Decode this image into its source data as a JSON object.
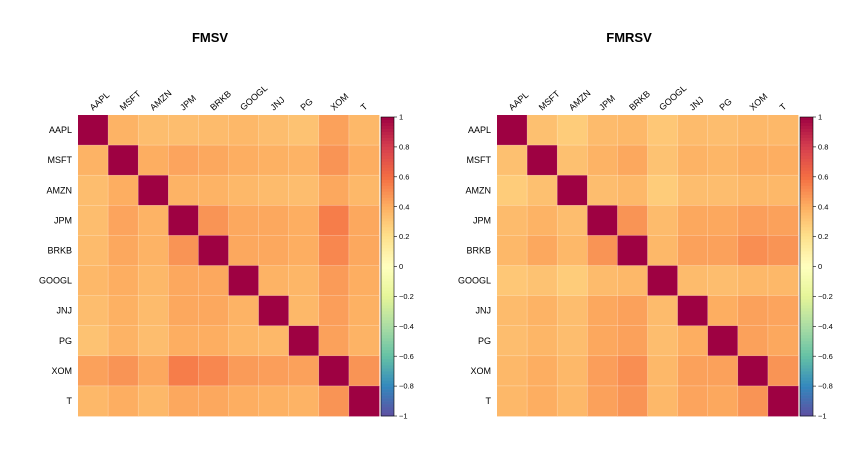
{
  "chart_data": [
    {
      "type": "heatmap",
      "title": "FMSV",
      "categories": [
        "AAPL",
        "MSFT",
        "AMZN",
        "JPM",
        "BRKB",
        "GOOGL",
        "JNJ",
        "PG",
        "XOM",
        "T"
      ],
      "values": [
        [
          1.0,
          0.38,
          0.34,
          0.34,
          0.35,
          0.36,
          0.34,
          0.32,
          0.44,
          0.36
        ],
        [
          0.38,
          1.0,
          0.4,
          0.43,
          0.42,
          0.4,
          0.39,
          0.38,
          0.48,
          0.4
        ],
        [
          0.34,
          0.4,
          1.0,
          0.38,
          0.38,
          0.36,
          0.35,
          0.34,
          0.42,
          0.36
        ],
        [
          0.34,
          0.43,
          0.38,
          1.0,
          0.48,
          0.42,
          0.42,
          0.4,
          0.55,
          0.42
        ],
        [
          0.35,
          0.42,
          0.38,
          0.48,
          1.0,
          0.42,
          0.42,
          0.4,
          0.52,
          0.42
        ],
        [
          0.36,
          0.4,
          0.36,
          0.42,
          0.42,
          1.0,
          0.38,
          0.37,
          0.46,
          0.4
        ],
        [
          0.34,
          0.39,
          0.35,
          0.42,
          0.42,
          0.38,
          1.0,
          0.36,
          0.45,
          0.39
        ],
        [
          0.32,
          0.38,
          0.34,
          0.4,
          0.4,
          0.37,
          0.36,
          1.0,
          0.44,
          0.38
        ],
        [
          0.44,
          0.48,
          0.42,
          0.55,
          0.52,
          0.46,
          0.45,
          0.44,
          1.0,
          0.48
        ],
        [
          0.36,
          0.4,
          0.36,
          0.42,
          0.42,
          0.4,
          0.39,
          0.38,
          0.48,
          1.0
        ]
      ],
      "colorbar": {
        "range": [
          -1,
          1
        ],
        "ticks": [
          "1",
          "0.8",
          "0.6",
          "0.4",
          "0.2",
          "0",
          "−0.2",
          "−0.4",
          "−0.6",
          "−0.8",
          "−1"
        ]
      }
    },
    {
      "type": "heatmap",
      "title": "FMRSV",
      "categories": [
        "AAPL",
        "MSFT",
        "AMZN",
        "JPM",
        "BRKB",
        "GOOGL",
        "JNJ",
        "PG",
        "XOM",
        "T"
      ],
      "values": [
        [
          1.0,
          0.33,
          0.28,
          0.35,
          0.36,
          0.3,
          0.35,
          0.34,
          0.36,
          0.36
        ],
        [
          0.33,
          1.0,
          0.33,
          0.38,
          0.42,
          0.32,
          0.38,
          0.37,
          0.4,
          0.4
        ],
        [
          0.28,
          0.33,
          1.0,
          0.34,
          0.36,
          0.28,
          0.34,
          0.34,
          0.36,
          0.36
        ],
        [
          0.35,
          0.38,
          0.34,
          1.0,
          0.48,
          0.35,
          0.42,
          0.42,
          0.45,
          0.44
        ],
        [
          0.36,
          0.42,
          0.36,
          0.48,
          1.0,
          0.36,
          0.44,
          0.44,
          0.5,
          0.48
        ],
        [
          0.3,
          0.32,
          0.28,
          0.35,
          0.36,
          1.0,
          0.35,
          0.34,
          0.36,
          0.36
        ],
        [
          0.35,
          0.38,
          0.34,
          0.42,
          0.44,
          0.35,
          1.0,
          0.4,
          0.44,
          0.43
        ],
        [
          0.34,
          0.37,
          0.34,
          0.42,
          0.44,
          0.34,
          0.4,
          1.0,
          0.44,
          0.42
        ],
        [
          0.36,
          0.4,
          0.36,
          0.45,
          0.5,
          0.36,
          0.44,
          0.44,
          1.0,
          0.48
        ],
        [
          0.36,
          0.4,
          0.36,
          0.44,
          0.48,
          0.36,
          0.43,
          0.42,
          0.48,
          1.0
        ]
      ],
      "colorbar": {
        "range": [
          -1,
          1
        ],
        "ticks": [
          "1",
          "0.8",
          "0.6",
          "0.4",
          "0.2",
          "0",
          "−0.2",
          "−0.4",
          "−0.6",
          "−0.8",
          "−1"
        ]
      }
    }
  ]
}
